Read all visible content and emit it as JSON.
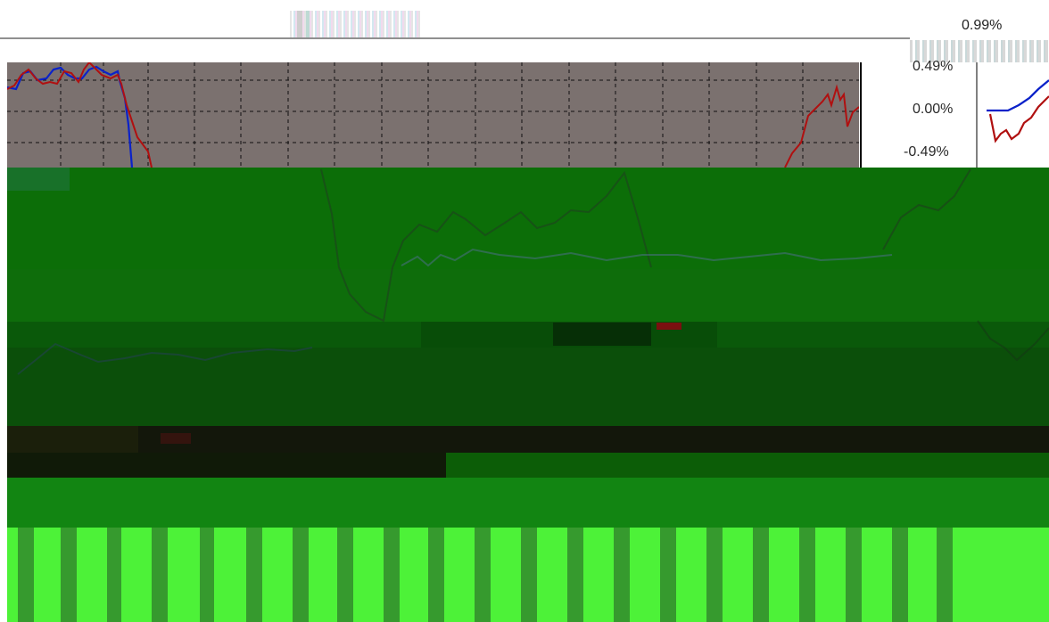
{
  "header": {
    "top_percent_label": "0.99%"
  },
  "axis": {
    "labels": [
      "0.49%",
      "0.00%",
      "-0.49%"
    ]
  },
  "colors": {
    "plot_background": "#7b716f",
    "series_red": "#b01010",
    "series_blue": "#0b22c9",
    "glitch_green_bright": "#4df238",
    "glitch_green_dark": "#0c6e08"
  }
}
